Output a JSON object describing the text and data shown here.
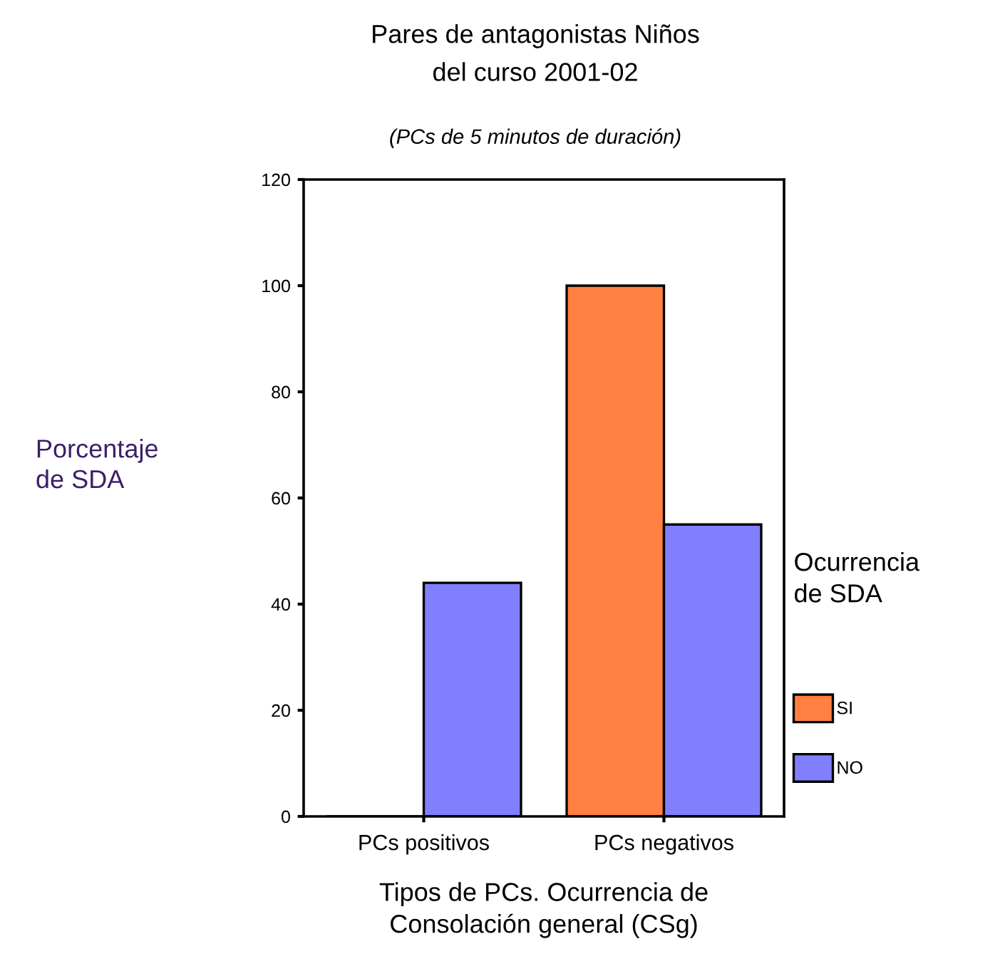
{
  "chart_data": {
    "type": "bar",
    "title": "Pares de antagonistas Niños\ndel curso 2001-02",
    "subtitle": "(PCs de 5 minutos de duración)",
    "xlabel": "Tipos de PCs. Ocurrencia de\nConsolación general (CSg)",
    "ylabel": "Porcentaje\nde SDA",
    "legend_title": "Ocurrencia\nde SDA",
    "categories": [
      "PCs positivos",
      "PCs negativos"
    ],
    "series": [
      {
        "name": "SI",
        "color": "#ff8040",
        "values": [
          0,
          100
        ]
      },
      {
        "name": "NO",
        "color": "#8080ff",
        "values": [
          44,
          55
        ]
      }
    ],
    "ylim": [
      0,
      120
    ],
    "yticks": [
      0,
      20,
      40,
      60,
      80,
      100,
      120
    ],
    "grid": false,
    "legend": "right"
  }
}
